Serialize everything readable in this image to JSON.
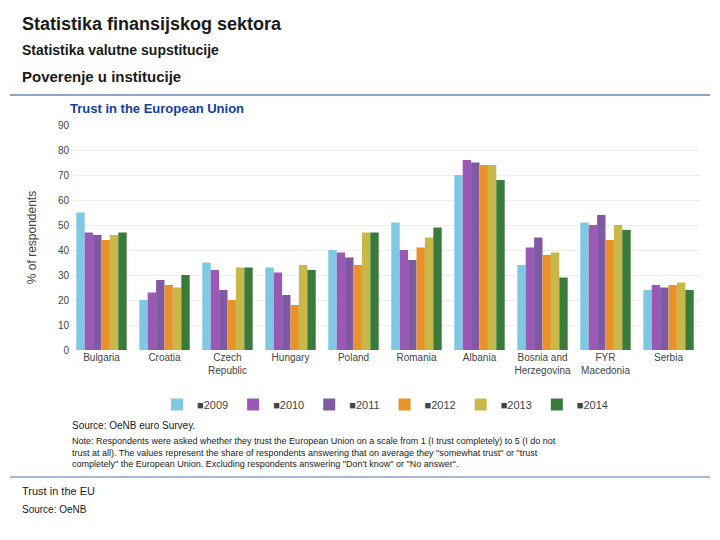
{
  "chart_data": {
    "type": "bar",
    "title": "Trust in the European Union",
    "y_label": "% of respondents",
    "annotations": [
      "Statistika finansijskog sektora",
      "Statistika valutne supstitucije",
      "Poverenje u institucije",
      "Source: OeNB euro Survey.",
      "Note: Respondents were asked whether they trust the European Union on a scale from 1 (I trust completely) to 5 (I do not trust at all). The values represent the share of respondents answering that on average they \"somewhat trust\" or \"trust completely\" the European Union. Excluding respondents answering \"Don't know\" or \"No answer\".",
      "Trust in the EU",
      "Source: OeNB"
    ],
    "categories": [
      "Bulgaria",
      "Croatia",
      "Czech\nRepublic",
      "Hungary",
      "Poland",
      "Romania",
      "Albania",
      "Bosnia and\nHerzegovina",
      "FYR\nMacedonia",
      "Serbia"
    ],
    "series": [
      {
        "name": "■2009",
        "color": "#7EC8E3",
        "values": [
          55,
          20,
          35,
          33,
          40,
          51,
          70,
          34,
          51,
          24
        ]
      },
      {
        "name": "■2010",
        "color": "#9B59B6",
        "values": [
          47,
          23,
          32,
          31,
          39,
          40,
          76,
          41,
          50,
          26
        ]
      },
      {
        "name": "■2011",
        "color": "#7F5AA2",
        "values": [
          46,
          28,
          24,
          22,
          37,
          36,
          75,
          45,
          54,
          25
        ]
      },
      {
        "name": "■2012",
        "color": "#E8922A",
        "values": [
          44,
          26,
          20,
          18,
          34,
          41,
          74,
          38,
          44,
          26
        ]
      },
      {
        "name": "■2013",
        "color": "#C8B84A",
        "values": [
          46,
          25,
          33,
          34,
          47,
          45,
          74,
          39,
          50,
          27
        ]
      },
      {
        "name": "■2014",
        "color": "#3A7A3A",
        "values": [
          47,
          30,
          33,
          32,
          47,
          49,
          68,
          29,
          48,
          24
        ]
      }
    ],
    "ylim": [
      0,
      90
    ],
    "yticks": [
      0,
      10,
      20,
      30,
      40,
      50,
      60,
      70,
      80,
      90
    ],
    "grid": true,
    "legend": "bottom"
  }
}
